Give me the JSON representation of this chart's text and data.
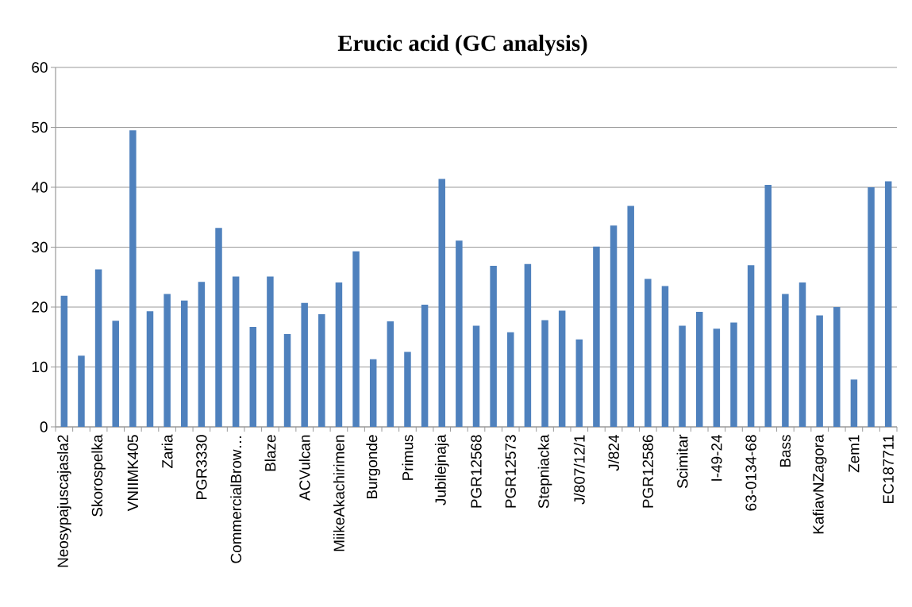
{
  "chart_data": {
    "type": "bar",
    "title": "Erucic acid (GC analysis)",
    "categories": [
      "Neosypajuscajasla2",
      null,
      "Skorospelka",
      null,
      "VNIIMK405",
      null,
      "Zaria",
      null,
      "PGR3330",
      null,
      "CommercialBrow…",
      null,
      "Blaze",
      null,
      "ACVulcan",
      null,
      "MiikeAkachirimen",
      null,
      "Burgonde",
      null,
      "Primus",
      null,
      "Jubilejnaja",
      null,
      "PGR12568",
      null,
      "PGR12573",
      null,
      "Stepniacka",
      null,
      "J/807/12/1",
      null,
      "J/824",
      null,
      "PGR12586",
      null,
      "Scimitar",
      null,
      "I-49-24",
      null,
      "63-0134-68",
      null,
      "Bass",
      null,
      "KafiavNZagora",
      null,
      "Zem1",
      null,
      "EC187711"
    ],
    "values": [
      21.9,
      11.9,
      26.3,
      17.7,
      49.5,
      19.3,
      22.2,
      21.1,
      24.2,
      33.2,
      25.1,
      16.7,
      25.1,
      15.5,
      20.7,
      18.8,
      24.1,
      29.3,
      11.3,
      17.6,
      12.5,
      20.4,
      41.4,
      31.1,
      16.9,
      26.9,
      15.8,
      27.2,
      17.8,
      19.4,
      14.6,
      30.1,
      33.6,
      36.9,
      24.7,
      23.5,
      16.9,
      19.2,
      16.4,
      17.4,
      27.0,
      40.4,
      22.2,
      24.1,
      18.6,
      20.0,
      7.9,
      40.0,
      41.0
    ],
    "color": "#4f81bd",
    "ylim": [
      0,
      60
    ],
    "yticks": [
      0,
      10,
      20,
      30,
      40,
      50,
      60
    ],
    "grid": "y"
  }
}
